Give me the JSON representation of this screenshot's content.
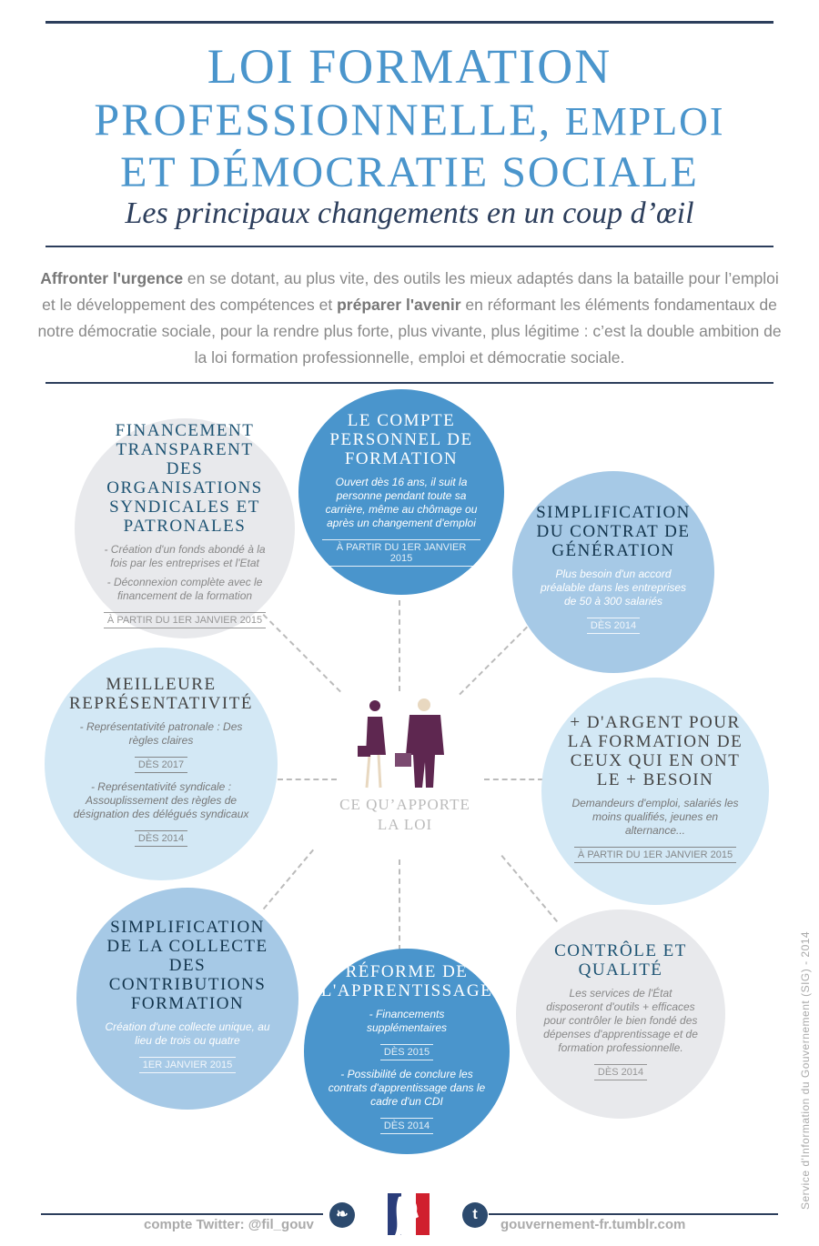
{
  "header": {
    "title_line1": "LOI FORMATION",
    "title_line2a": "PROFESSIONNELLE,",
    "title_line2b": "EMPLOI",
    "title_line3": "ET DÉMOCRATIE SOCIALE",
    "subtitle": "Les principaux changements en un coup d’œil"
  },
  "intro": {
    "bold1": "Affronter l'urgence",
    "text1": " en se dotant, au plus vite, des outils les mieux adaptés dans la bataille pour l’emploi et le développement des compétences et ",
    "bold2": "préparer l'avenir",
    "text2": " en réformant les éléments fondamentaux de notre démocratie sociale, pour la rendre plus forte, plus vivante, plus légitime : c’est la double ambition de la loi formation professionnelle, emploi et démocratie sociale."
  },
  "center": {
    "label": "CE QU’APPORTE LA LOI"
  },
  "circles": {
    "financement": {
      "title": "FINANCEMENT TRANSPARENT DES ORGANISATIONS SYNDICALES ET PATRONALES",
      "items": [
        "- Création d'un fonds abondé à la fois par les entreprises et l'Etat",
        "- Déconnexion complète avec le financement de la formation"
      ],
      "date": "À PARTIR DU 1ER JANVIER 2015"
    },
    "compte": {
      "title": "LE COMPTE PERSONNEL DE FORMATION",
      "text": "Ouvert dès 16 ans, il suit la personne pendant toute sa carrière, même au chômage ou après un changement d'emploi",
      "date": "À PARTIR DU 1ER JANVIER 2015"
    },
    "contrat": {
      "title": "SIMPLIFICATION DU CONTRAT DE GÉNÉRATION",
      "text": "Plus besoin d'un accord préalable dans les entreprises de 50 à 300 salariés",
      "date": "DÈS 2014"
    },
    "representativite": {
      "title": "MEILLEURE REPRÉSENTATIVITÉ",
      "item1": "- Représentativité patronale : Des règles claires",
      "date1": "DÈS 2017",
      "item2": "- Représentativité syndicale : Assouplissement des règles de désignation des délégués syndicaux",
      "date2": "DÈS 2014"
    },
    "argent": {
      "title": "+ D'ARGENT POUR LA FORMATION DE CEUX QUI EN ONT LE + BESOIN",
      "text": "Demandeurs d'emploi, salariés les moins qualifiés, jeunes en alternance...",
      "date": "À PARTIR DU 1ER JANVIER 2015"
    },
    "collecte": {
      "title": "SIMPLIFICATION DE LA COLLECTE DES CONTRIBUTIONS FORMATION",
      "text": "Création d'une collecte unique, au lieu de trois ou quatre",
      "date": "1ER JANVIER 2015"
    },
    "apprentissage": {
      "title": "RÉFORME DE L'APPRENTISSAGE",
      "item1": "- Financements supplémentaires",
      "date1": "DÈS 2015",
      "item2": "- Possibilité de conclure les contrats d'apprentissage dans le cadre d'un CDI",
      "date2": "DÈS 2014"
    },
    "controle": {
      "title": "CONTRÔLE ET QUALITÉ",
      "text": "Les services de l'État disposeront d'outils + efficaces pour contrôler le bien fondé des dépenses d'apprentissage et de formation professionnelle.",
      "date": "DÈS 2014"
    }
  },
  "footer": {
    "twitter": "compte Twitter: @fil_gouv",
    "twitter_icon": "t-bird",
    "tumblr_icon": "t",
    "tumblr": "gouvernement-fr.tumblr.com",
    "credit": "Service d'Information du Gouvernement (SIG) - 2014",
    "logo": "Marianne"
  },
  "colors": {
    "dark_blue": "#4a95cc",
    "mid_blue": "#a6c9e6",
    "light_blue": "#d3e8f5",
    "grey": "#e8e9ec",
    "navy": "#2c3e5c",
    "figures": "#5e2750"
  }
}
